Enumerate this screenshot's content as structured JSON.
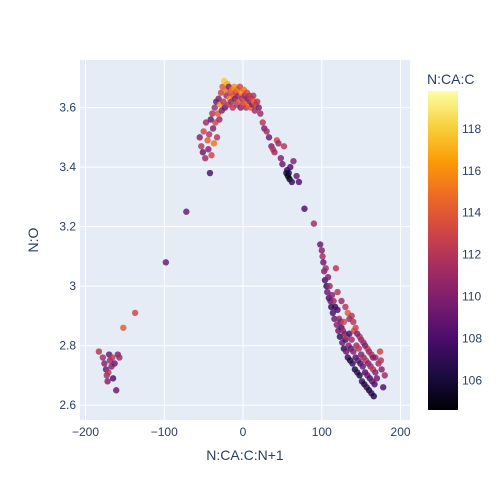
{
  "chart_data": {
    "type": "scatter",
    "xlabel": "N:CA:C:N+1",
    "ylabel": "N:O",
    "colorbar_title": "N:CA:C",
    "xlim": [
      -207,
      212
    ],
    "ylim": [
      2.55,
      3.76
    ],
    "color_range": [
      104.6,
      119.8
    ],
    "x_ticks": [
      -200,
      -100,
      0,
      100,
      200
    ],
    "x_tick_labels": [
      "−200",
      "−100",
      "0",
      "100",
      "200"
    ],
    "y_ticks": [
      2.6,
      2.8,
      3.0,
      3.2,
      3.4,
      3.6
    ],
    "y_tick_labels": [
      "2.6",
      "2.8",
      "3",
      "3.2",
      "3.4",
      "3.6"
    ],
    "color_ticks": [
      106,
      108,
      110,
      112,
      114,
      116,
      118
    ],
    "colorscale": "Inferno",
    "colorscale_stops": [
      "#000004",
      "#1b0c41",
      "#4a0c6b",
      "#781c6d",
      "#a52c60",
      "#cf4446",
      "#ed6925",
      "#fb9b06",
      "#f7d13d",
      "#fcffa4"
    ],
    "background": "#e5ecf6",
    "grid": true,
    "points": [
      [
        -183,
        2.78,
        112
      ],
      [
        -178,
        2.76,
        111
      ],
      [
        -176,
        2.74,
        110
      ],
      [
        -174,
        2.72,
        109
      ],
      [
        -173,
        2.7,
        111
      ],
      [
        -172,
        2.68,
        110
      ],
      [
        -171,
        2.71,
        112
      ],
      [
        -170,
        2.77,
        109
      ],
      [
        -169,
        2.75,
        111
      ],
      [
        -167,
        2.73,
        110
      ],
      [
        -166,
        2.76,
        112
      ],
      [
        -165,
        2.69,
        108
      ],
      [
        -163,
        2.74,
        109
      ],
      [
        -161,
        2.65,
        109
      ],
      [
        -159,
        2.77,
        110
      ],
      [
        -157,
        2.76,
        111
      ],
      [
        -152,
        2.86,
        114
      ],
      [
        -137,
        2.91,
        113
      ],
      [
        -98,
        3.08,
        109
      ],
      [
        -72,
        3.25,
        109
      ],
      [
        -42,
        3.38,
        108
      ],
      [
        -55,
        3.5,
        110
      ],
      [
        -53,
        3.47,
        112
      ],
      [
        -51,
        3.45,
        109
      ],
      [
        -50,
        3.52,
        113
      ],
      [
        -48,
        3.43,
        111
      ],
      [
        -47,
        3.55,
        111
      ],
      [
        -45,
        3.49,
        114
      ],
      [
        -44,
        3.46,
        110
      ],
      [
        -43,
        3.51,
        112
      ],
      [
        -41,
        3.56,
        109
      ],
      [
        -40,
        3.44,
        113
      ],
      [
        -39,
        3.58,
        112
      ],
      [
        -38,
        3.53,
        110
      ],
      [
        -37,
        3.48,
        115
      ],
      [
        -36,
        3.6,
        111
      ],
      [
        -35,
        3.55,
        113
      ],
      [
        -34,
        3.62,
        109
      ],
      [
        -33,
        3.5,
        112
      ],
      [
        -32,
        3.58,
        114
      ],
      [
        -31,
        3.63,
        110
      ],
      [
        -30,
        3.56,
        111
      ],
      [
        -29,
        3.61,
        116
      ],
      [
        -28,
        3.65,
        113
      ],
      [
        -27,
        3.59,
        110
      ],
      [
        -26,
        3.67,
        114
      ],
      [
        -25,
        3.62,
        112
      ],
      [
        -24,
        3.69,
        118
      ],
      [
        -23,
        3.6,
        109
      ],
      [
        -22,
        3.66,
        115
      ],
      [
        -21,
        3.64,
        111
      ],
      [
        -20,
        3.68,
        117
      ],
      [
        -19,
        3.61,
        112
      ],
      [
        -18,
        3.67,
        110
      ],
      [
        -17,
        3.63,
        116
      ],
      [
        -16,
        3.65,
        113
      ],
      [
        -15,
        3.62,
        111
      ],
      [
        -14,
        3.66,
        115
      ],
      [
        -13,
        3.6,
        112
      ],
      [
        -12,
        3.64,
        114
      ],
      [
        -11,
        3.67,
        116
      ],
      [
        -10,
        3.63,
        110
      ],
      [
        -9,
        3.65,
        113
      ],
      [
        -8,
        3.61,
        112
      ],
      [
        -7,
        3.66,
        115
      ],
      [
        -6,
        3.64,
        111
      ],
      [
        -5,
        3.62,
        114
      ],
      [
        -4,
        3.67,
        113
      ],
      [
        -3,
        3.6,
        110
      ],
      [
        -2,
        3.65,
        116
      ],
      [
        -1,
        3.63,
        112
      ],
      [
        0,
        3.61,
        113
      ],
      [
        1,
        3.66,
        115
      ],
      [
        2,
        3.64,
        111
      ],
      [
        3,
        3.62,
        114
      ],
      [
        4,
        3.6,
        112
      ],
      [
        5,
        3.65,
        113
      ],
      [
        6,
        3.63,
        110
      ],
      [
        7,
        3.61,
        115
      ],
      [
        8,
        3.64,
        112
      ],
      [
        9,
        3.62,
        111
      ],
      [
        10,
        3.6,
        114
      ],
      [
        11,
        3.63,
        113
      ],
      [
        12,
        3.61,
        110
      ],
      [
        13,
        3.64,
        112
      ],
      [
        14,
        3.62,
        115
      ],
      [
        15,
        3.59,
        111
      ],
      [
        16,
        3.61,
        113
      ],
      [
        18,
        3.62,
        112
      ],
      [
        20,
        3.6,
        110
      ],
      [
        22,
        3.58,
        111
      ],
      [
        25,
        3.55,
        112
      ],
      [
        27,
        3.53,
        110
      ],
      [
        30,
        3.52,
        111
      ],
      [
        33,
        3.5,
        109
      ],
      [
        36,
        3.47,
        110
      ],
      [
        38,
        3.46,
        112
      ],
      [
        40,
        3.45,
        111
      ],
      [
        43,
        3.49,
        113
      ],
      [
        45,
        3.48,
        111
      ],
      [
        48,
        3.43,
        110
      ],
      [
        50,
        3.41,
        109
      ],
      [
        52,
        3.47,
        112
      ],
      [
        55,
        3.38,
        106
      ],
      [
        56,
        3.39,
        107
      ],
      [
        57,
        3.37,
        105
      ],
      [
        58,
        3.38,
        106
      ],
      [
        59,
        3.36,
        105
      ],
      [
        60,
        3.4,
        108
      ],
      [
        62,
        3.35,
        107
      ],
      [
        64,
        3.42,
        110
      ],
      [
        68,
        3.37,
        109
      ],
      [
        71,
        3.35,
        108
      ],
      [
        78,
        3.26,
        108
      ],
      [
        90,
        3.21,
        111
      ],
      [
        98,
        3.14,
        109
      ],
      [
        100,
        3.12,
        110
      ],
      [
        101,
        3.1,
        111
      ],
      [
        102,
        3.08,
        109
      ],
      [
        103,
        3.05,
        110
      ],
      [
        104,
        3.02,
        108
      ],
      [
        105,
        3.06,
        111
      ],
      [
        106,
        3.0,
        107
      ],
      [
        107,
        2.98,
        109
      ],
      [
        108,
        3.03,
        110
      ],
      [
        109,
        2.96,
        108
      ],
      [
        110,
        3.0,
        111
      ],
      [
        111,
        2.95,
        109
      ],
      [
        112,
        2.93,
        107
      ],
      [
        113,
        2.97,
        110
      ],
      [
        114,
        2.91,
        108
      ],
      [
        115,
        2.95,
        111
      ],
      [
        116,
        2.89,
        109
      ],
      [
        117,
        2.93,
        107
      ],
      [
        118,
        3.06,
        112
      ],
      [
        119,
        2.87,
        110
      ],
      [
        120,
        2.92,
        108
      ],
      [
        121,
        2.85,
        109
      ],
      [
        122,
        2.89,
        111
      ],
      [
        123,
        2.83,
        107
      ],
      [
        124,
        2.88,
        110
      ],
      [
        125,
        2.86,
        108
      ],
      [
        126,
        2.81,
        109
      ],
      [
        127,
        2.85,
        111
      ],
      [
        128,
        2.79,
        107
      ],
      [
        129,
        2.84,
        110
      ],
      [
        130,
        2.82,
        108
      ],
      [
        131,
        2.78,
        109
      ],
      [
        132,
        2.83,
        112
      ],
      [
        133,
        2.76,
        107
      ],
      [
        134,
        2.8,
        110
      ],
      [
        135,
        2.84,
        108
      ],
      [
        136,
        2.75,
        106
      ],
      [
        137,
        2.79,
        109
      ],
      [
        138,
        2.82,
        111
      ],
      [
        139,
        2.74,
        107
      ],
      [
        140,
        2.78,
        110
      ],
      [
        141,
        2.85,
        113
      ],
      [
        142,
        2.72,
        106
      ],
      [
        143,
        2.76,
        108
      ],
      [
        144,
        2.8,
        111
      ],
      [
        145,
        2.71,
        107
      ],
      [
        146,
        2.75,
        109
      ],
      [
        147,
        2.79,
        112
      ],
      [
        148,
        2.7,
        106
      ],
      [
        149,
        2.74,
        108
      ],
      [
        150,
        2.77,
        110
      ],
      [
        151,
        2.68,
        107
      ],
      [
        152,
        2.73,
        109
      ],
      [
        153,
        2.76,
        111
      ],
      [
        154,
        2.67,
        106
      ],
      [
        155,
        2.71,
        108
      ],
      [
        156,
        2.75,
        112
      ],
      [
        157,
        2.66,
        107
      ],
      [
        158,
        2.7,
        109
      ],
      [
        159,
        2.74,
        110
      ],
      [
        160,
        2.65,
        106
      ],
      [
        161,
        2.69,
        108
      ],
      [
        162,
        2.73,
        111
      ],
      [
        163,
        2.64,
        107
      ],
      [
        164,
        2.68,
        109
      ],
      [
        165,
        2.72,
        112
      ],
      [
        166,
        2.63,
        106
      ],
      [
        167,
        2.67,
        108
      ],
      [
        168,
        2.71,
        110
      ],
      [
        170,
        2.69,
        109
      ],
      [
        172,
        2.74,
        111
      ],
      [
        174,
        2.78,
        113
      ],
      [
        176,
        2.72,
        110
      ],
      [
        178,
        2.66,
        108
      ],
      [
        180,
        2.7,
        111
      ],
      [
        128,
        2.88,
        113
      ],
      [
        133,
        2.91,
        114
      ],
      [
        138,
        2.9,
        112
      ],
      [
        143,
        2.86,
        113
      ],
      [
        148,
        2.83,
        112
      ],
      [
        153,
        2.81,
        111
      ],
      [
        158,
        2.79,
        113
      ],
      [
        163,
        2.77,
        112
      ],
      [
        168,
        2.76,
        111
      ],
      [
        175,
        2.75,
        112
      ],
      [
        120,
        2.98,
        112
      ],
      [
        125,
        2.95,
        111
      ],
      [
        130,
        2.93,
        112
      ],
      [
        135,
        2.89,
        111
      ],
      [
        140,
        2.88,
        112
      ],
      [
        145,
        2.84,
        110
      ],
      [
        150,
        2.82,
        111
      ],
      [
        155,
        2.8,
        110
      ],
      [
        160,
        2.78,
        111
      ],
      [
        165,
        2.76,
        110
      ]
    ]
  }
}
